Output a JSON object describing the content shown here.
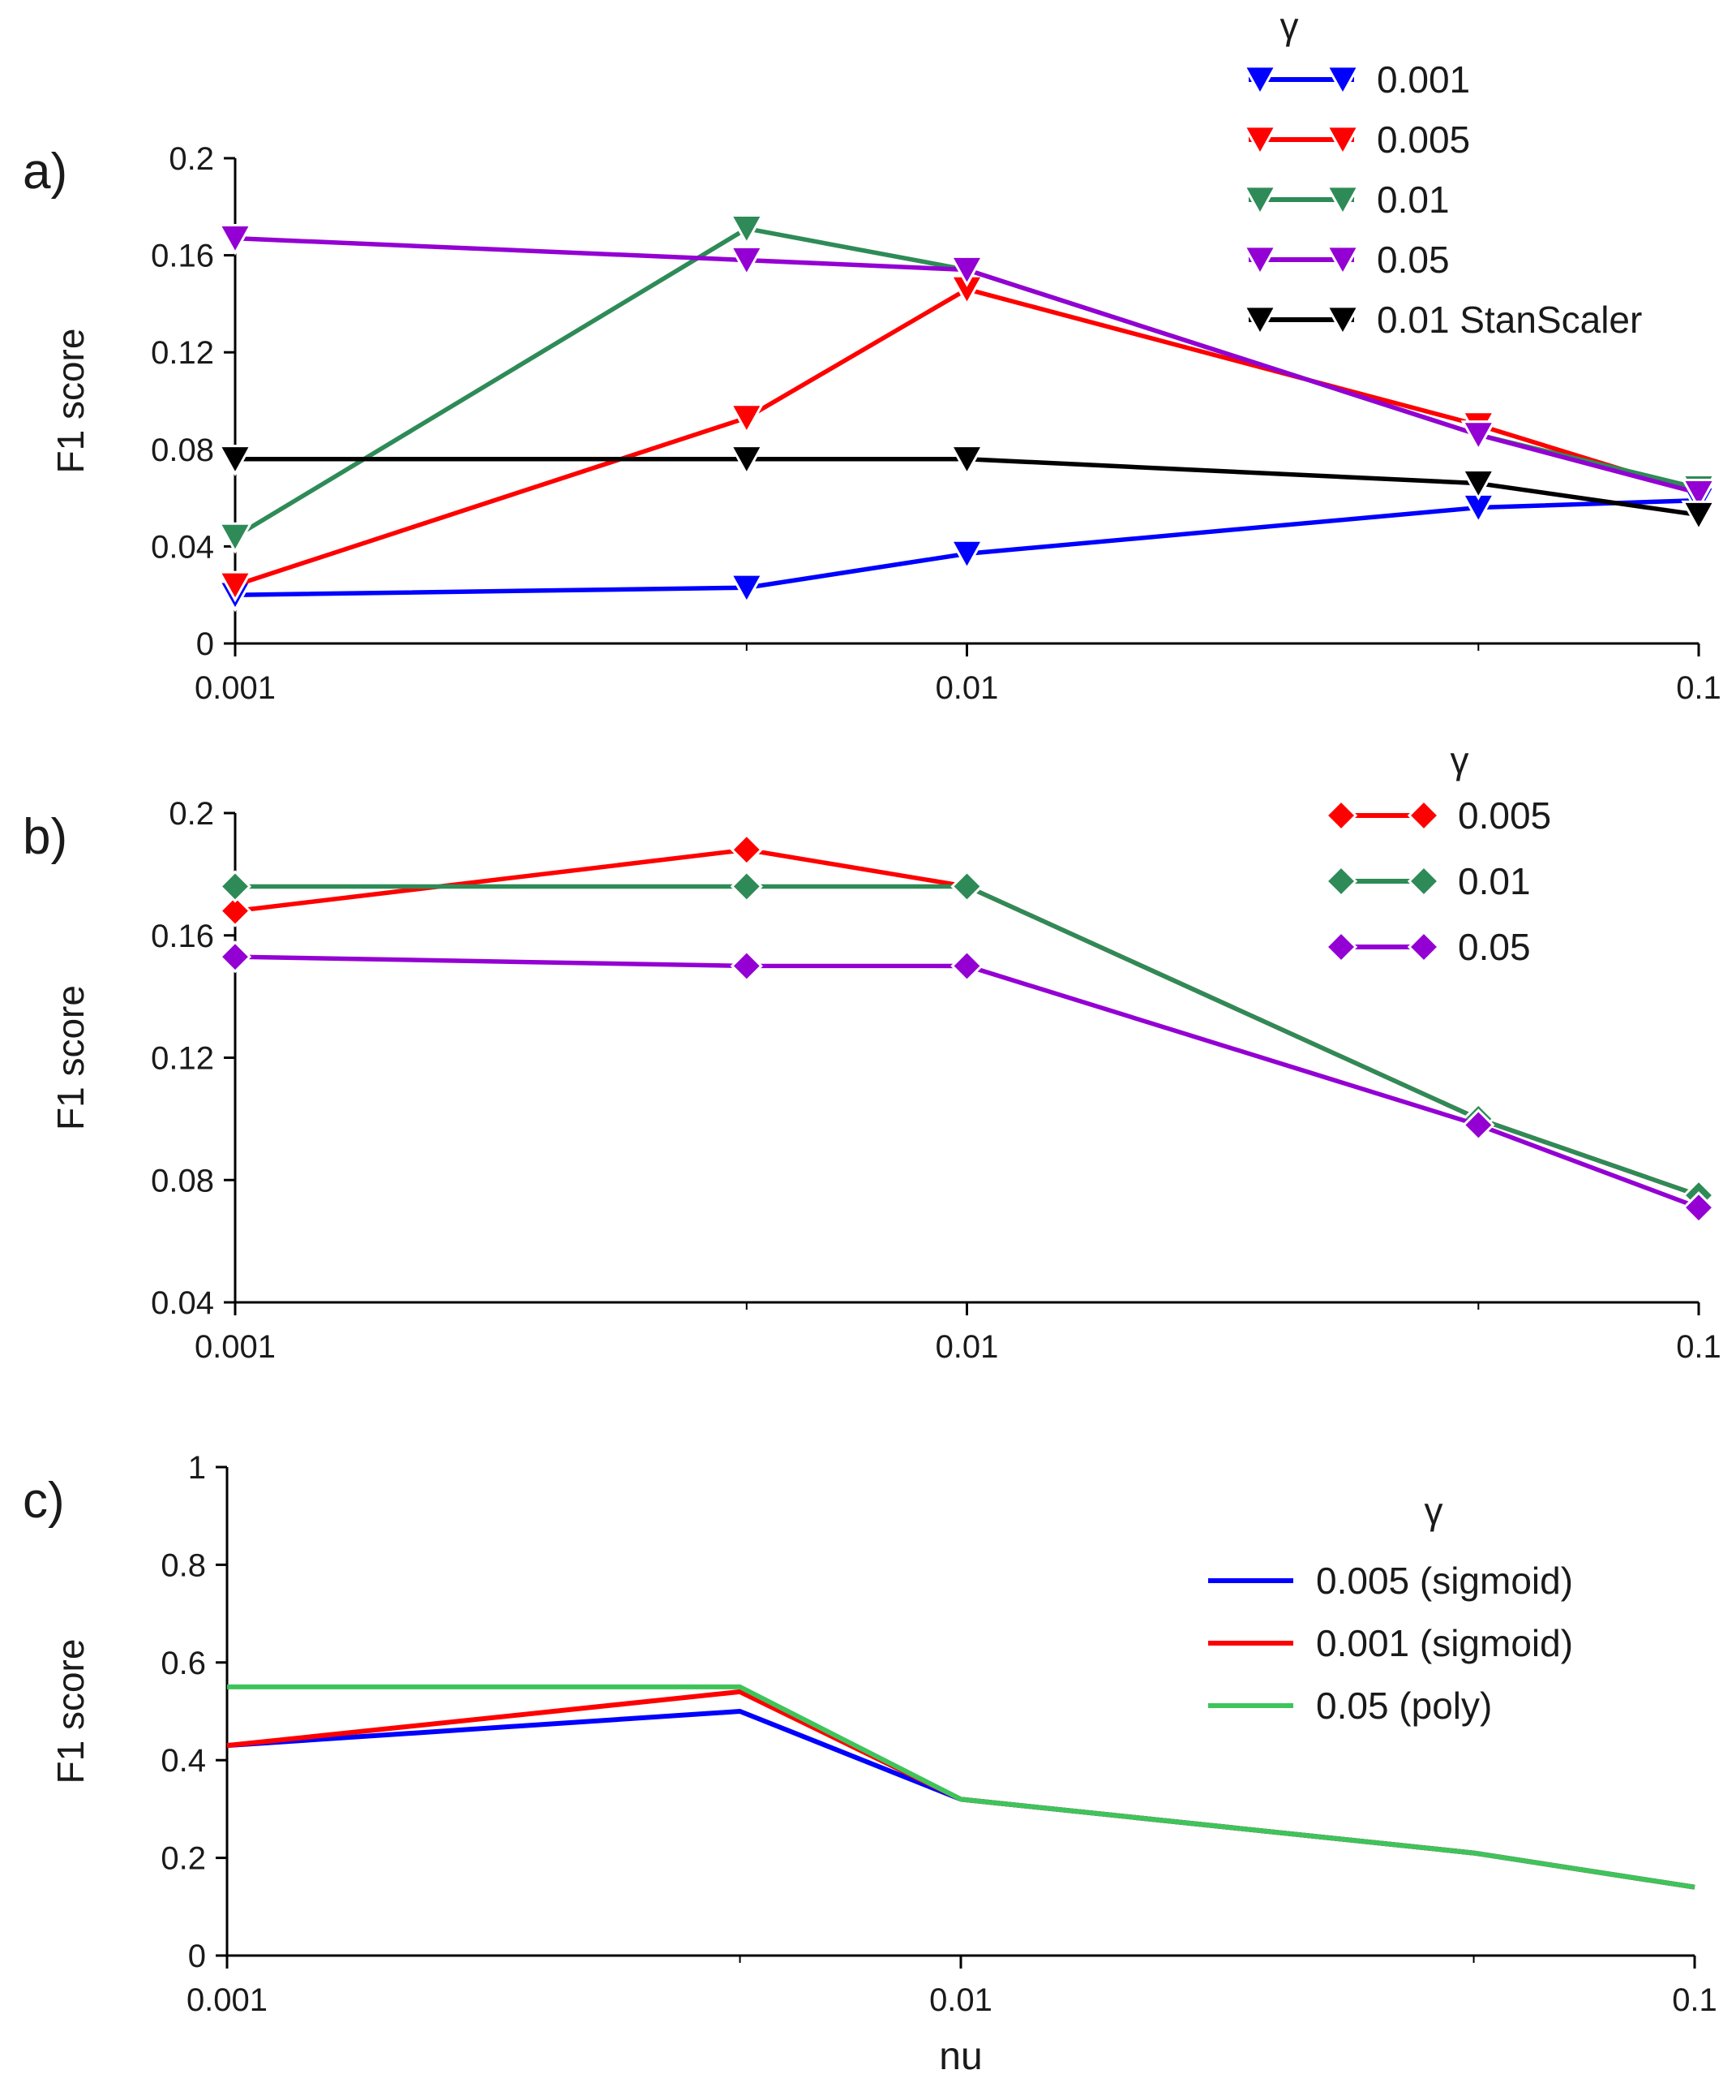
{
  "chart_data": [
    {
      "type": "line",
      "panel_label": "a)",
      "xscale": "log",
      "x": [
        0.001,
        0.005,
        0.01,
        0.05,
        0.1
      ],
      "x_tick_values": [
        0.001,
        0.01,
        0.1
      ],
      "x_tick_labels": [
        "0.001",
        "0.01",
        "0.1"
      ],
      "xlabel": "",
      "ylabel": "F1 score",
      "ylim": [
        0,
        0.2
      ],
      "y_tick_values": [
        0,
        0.04,
        0.08,
        0.12,
        0.16,
        0.2
      ],
      "y_tick_labels": [
        "0",
        "0.04",
        "0.08",
        "0.12",
        "0.16",
        "0.2"
      ],
      "marker": "triangle-down",
      "legend_title": "γ",
      "legend_position": "top-right",
      "series": [
        {
          "name": "0.001",
          "color": "#0000ff",
          "values": [
            0.02,
            0.023,
            0.037,
            0.056,
            0.059
          ]
        },
        {
          "name": "0.005",
          "color": "#ff0000",
          "values": [
            0.024,
            0.093,
            0.146,
            0.09,
            0.062
          ]
        },
        {
          "name": "0.01",
          "color": "#2e8b57",
          "values": [
            0.044,
            0.171,
            0.154,
            0.086,
            0.064
          ]
        },
        {
          "name": "0.05",
          "color": "#9400d3",
          "values": [
            0.167,
            0.158,
            0.154,
            0.086,
            0.062
          ]
        },
        {
          "name": "0.01 StanScaler",
          "color": "#000000",
          "values": [
            0.076,
            0.076,
            0.076,
            0.066,
            0.053
          ]
        }
      ]
    },
    {
      "type": "line",
      "panel_label": "b)",
      "xscale": "log",
      "x": [
        0.001,
        0.005,
        0.01,
        0.05,
        0.1
      ],
      "x_tick_values": [
        0.001,
        0.01,
        0.1
      ],
      "x_tick_labels": [
        "0.001",
        "0.01",
        "0.1"
      ],
      "xlabel": "",
      "ylabel": "F1 score",
      "ylim": [
        0.04,
        0.2
      ],
      "y_tick_values": [
        0.04,
        0.08,
        0.12,
        0.16,
        0.2
      ],
      "y_tick_labels": [
        "0.04",
        "0.08",
        "0.12",
        "0.16",
        "0.2"
      ],
      "marker": "diamond",
      "legend_title": "γ",
      "legend_position": "top-right",
      "series": [
        {
          "name": "0.005",
          "color": "#ff0000",
          "values": [
            0.168,
            0.188,
            0.176,
            0.1,
            0.075
          ]
        },
        {
          "name": "0.01",
          "color": "#2e8b57",
          "values": [
            0.176,
            0.176,
            0.176,
            0.1,
            0.075
          ]
        },
        {
          "name": "0.05",
          "color": "#9400d3",
          "values": [
            0.153,
            0.15,
            0.15,
            0.098,
            0.071
          ]
        }
      ]
    },
    {
      "type": "line",
      "panel_label": "c)",
      "xscale": "log",
      "x": [
        0.001,
        0.005,
        0.01,
        0.05,
        0.1
      ],
      "x_tick_values": [
        0.001,
        0.01,
        0.1
      ],
      "x_tick_labels": [
        "0.001",
        "0.01",
        "0.1"
      ],
      "xlabel": "nu",
      "ylabel": "F1 score",
      "ylim": [
        0,
        1
      ],
      "y_tick_values": [
        0,
        0.2,
        0.4,
        0.6,
        0.8,
        1
      ],
      "y_tick_labels": [
        "0",
        "0.2",
        "0.4",
        "0.6",
        "0.8",
        "1"
      ],
      "marker": "none",
      "legend_title": "γ",
      "legend_position": "right",
      "series": [
        {
          "name": "0.005 (sigmoid)",
          "color": "#0000ff",
          "values": [
            0.43,
            0.5,
            0.32,
            0.21,
            0.14
          ]
        },
        {
          "name": "0.001 (sigmoid)",
          "color": "#ff0000",
          "values": [
            0.43,
            0.54,
            0.32,
            0.21,
            0.14
          ]
        },
        {
          "name": "0.05 (poly)",
          "color": "#3ec45a",
          "values": [
            0.55,
            0.55,
            0.32,
            0.21,
            0.14
          ]
        }
      ]
    }
  ]
}
